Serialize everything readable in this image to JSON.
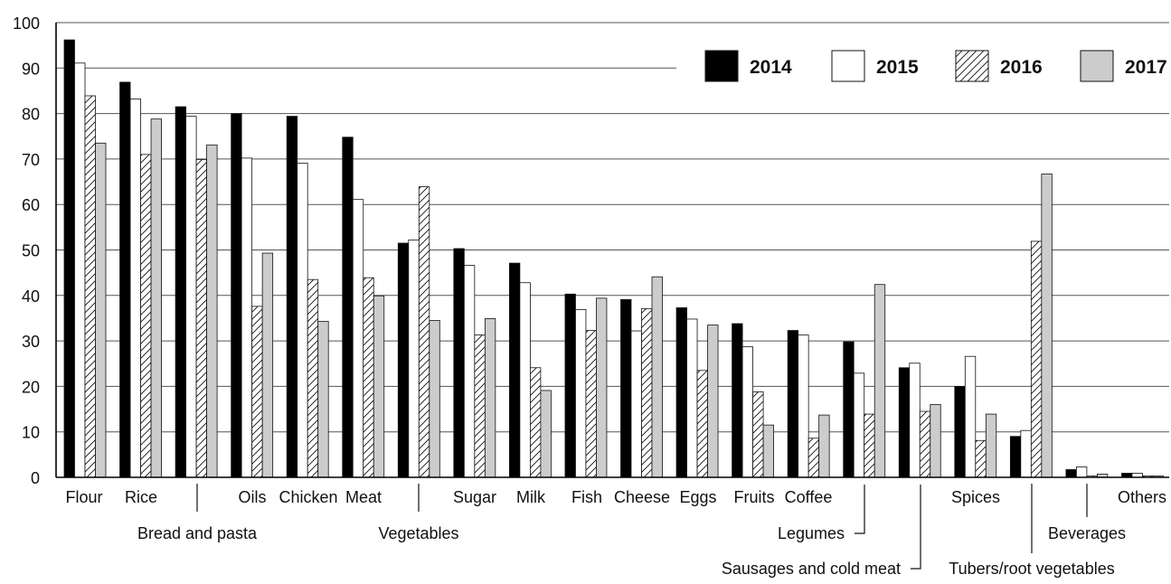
{
  "chart_data": {
    "type": "bar",
    "categories": [
      "Flour",
      "Rice",
      "Bread and pasta",
      "Oils",
      "Chicken",
      "Meat",
      "Vegetables",
      "Sugar",
      "Milk",
      "Fish",
      "Cheese",
      "Eggs",
      "Fruits",
      "Coffee",
      "Legumes",
      "Sausages and cold meat",
      "Spices",
      "Tubers/root vegetables",
      "Beverages",
      "Others"
    ],
    "series": [
      {
        "name": "2014",
        "values": [
          96.2,
          86.9,
          81.5,
          80.0,
          79.4,
          74.8,
          51.5,
          50.3,
          47.1,
          40.3,
          39.1,
          37.3,
          33.8,
          32.3,
          29.8,
          24.1,
          20.0,
          9.0,
          1.7,
          0.9
        ]
      },
      {
        "name": "2015",
        "values": [
          91.1,
          83.2,
          79.4,
          70.2,
          69.1,
          61.1,
          52.2,
          46.6,
          42.8,
          36.9,
          32.2,
          34.8,
          28.7,
          31.3,
          22.9,
          25.1,
          26.6,
          10.3,
          2.3,
          0.9
        ]
      },
      {
        "name": "2016",
        "values": [
          83.9,
          71.0,
          69.9,
          37.6,
          43.5,
          43.9,
          63.9,
          31.3,
          24.1,
          32.3,
          37.1,
          23.5,
          18.8,
          8.6,
          13.9,
          14.5,
          8.1,
          51.9,
          0.3,
          0.3
        ]
      },
      {
        "name": "2017",
        "values": [
          73.5,
          78.8,
          73.1,
          49.3,
          34.3,
          39.9,
          34.5,
          34.9,
          19.1,
          39.4,
          44.1,
          33.5,
          11.5,
          13.7,
          42.4,
          16.0,
          13.9,
          66.7,
          0.7,
          0.3
        ]
      }
    ],
    "ylim": [
      0,
      100
    ],
    "yticks": [
      "0",
      "10",
      "20",
      "30",
      "40",
      "50",
      "60",
      "70",
      "80",
      "90",
      "100"
    ],
    "grid": true,
    "legend_position": "top-right",
    "series_styles": {
      "2014": {
        "fill": "#000000",
        "pattern": "solid"
      },
      "2015": {
        "fill": "#ffffff",
        "pattern": "solid"
      },
      "2016": {
        "fill": "#ffffff",
        "pattern": "diagonal-hatch"
      },
      "2017": {
        "fill": "#cccccc",
        "pattern": "solid"
      }
    },
    "colors": {
      "axis": "#000000",
      "grid": "#555555"
    }
  }
}
